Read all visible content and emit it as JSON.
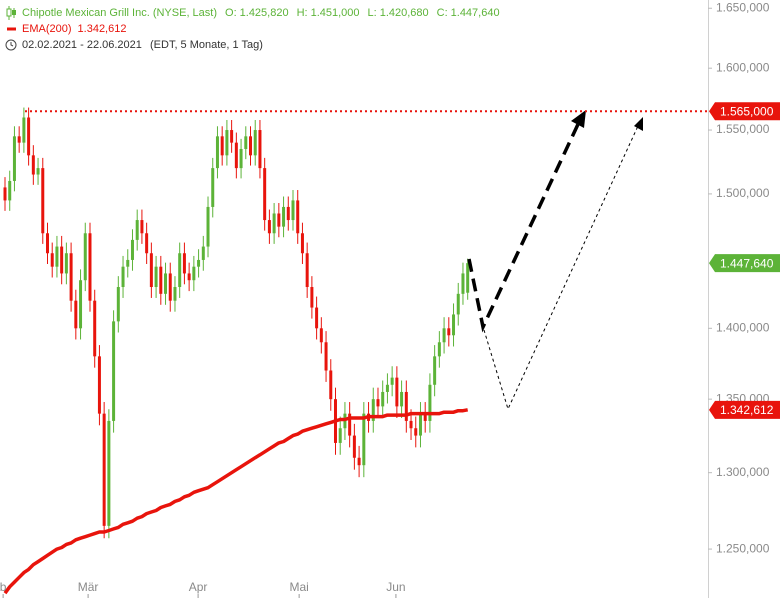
{
  "chart_data": {
    "type": "candlestick",
    "log_scale": true,
    "grid": false,
    "ylim": [
      1219,
      1657
    ],
    "yticks": [
      {
        "value": 1650,
        "label": "1.650,000"
      },
      {
        "value": 1600,
        "label": "1.600,000"
      },
      {
        "value": 1550,
        "label": "1.550,000"
      },
      {
        "value": 1500,
        "label": "1.500,000"
      },
      {
        "value": 1400,
        "label": "1.400,000"
      },
      {
        "value": 1350,
        "label": "1.350,000"
      },
      {
        "value": 1300,
        "label": "1.300,000"
      },
      {
        "value": 1250,
        "label": "1.250,000"
      }
    ],
    "xlim": [
      -1.06,
      148.9
    ],
    "xticks": [
      {
        "value": -0.4,
        "label": "b"
      },
      {
        "value": 17.6,
        "label": "Mär"
      },
      {
        "value": 40.9,
        "label": "Apr"
      },
      {
        "value": 62.3,
        "label": "Mai"
      },
      {
        "value": 82.8,
        "label": "Jun"
      }
    ],
    "categories": [
      null,
      null,
      null,
      null,
      null,
      null,
      null,
      null,
      null,
      null,
      null,
      null,
      null,
      null,
      null,
      null,
      null,
      null,
      null,
      null,
      null,
      null,
      null,
      null,
      null,
      null,
      null,
      null,
      null,
      null,
      null,
      null,
      null,
      null,
      null,
      null,
      null,
      null,
      null,
      null,
      null,
      null,
      null,
      null,
      null,
      null,
      null,
      null,
      null,
      null,
      null,
      null,
      null,
      null,
      null,
      null,
      null,
      null,
      null,
      null,
      null,
      null,
      null,
      null,
      null,
      null,
      null,
      null,
      null,
      null,
      null,
      null,
      null,
      null,
      null,
      null,
      null,
      null,
      null,
      null,
      null,
      null,
      null,
      null,
      null,
      null,
      null,
      null,
      null,
      null,
      null,
      null,
      null,
      null,
      null,
      null,
      null,
      null,
      null
    ],
    "quote": [
      {
        "key": "O:",
        "value": 1425.82,
        "label": "1.425,820"
      },
      {
        "key": "H:",
        "value": 1451,
        "label": "1.451,000"
      },
      {
        "key": "L:",
        "value": 1420.68,
        "label": "1.420,680"
      },
      {
        "key": "C:",
        "value": 1447.64,
        "label": "1.447,640"
      }
    ],
    "period": "02.02.2021 - 22.06.2021",
    "period_note": "(EDT, 5 Monate, 1 Tag)",
    "hlines": [
      {
        "value": 1565,
        "label": "1.565,000",
        "color": "#e8140c"
      }
    ],
    "series": [
      {
        "name": "Chipotle Mexican Grill Inc. (NYSE, Last)",
        "up_color": "#5cb338",
        "down_color": "#e8140c",
        "name_color": "#5cb338",
        "open": [
          1505,
          1495,
          1510,
          1545,
          1540,
          1560,
          1530,
          1515,
          1520,
          1470,
          1455,
          1445,
          1460,
          1440,
          1455,
          1420,
          1400,
          1435,
          1470,
          1420,
          1380,
          1340,
          1265,
          1335,
          1405,
          1430,
          1445,
          1450,
          1465,
          1480,
          1470,
          1455,
          1430,
          1445,
          1425,
          1440,
          1420,
          1430,
          1455,
          1440,
          1435,
          1445,
          1450,
          1460,
          1490,
          1520,
          1545,
          1530,
          1550,
          1540,
          1520,
          1535,
          1545,
          1530,
          1550,
          1520,
          1480,
          1470,
          1485,
          1475,
          1490,
          1480,
          1495,
          1470,
          1455,
          1430,
          1415,
          1400,
          1390,
          1370,
          1350,
          1320,
          1330,
          1340,
          1325,
          1310,
          1305,
          1340,
          1335,
          1350,
          1345,
          1355,
          1360,
          1365,
          1345,
          1355,
          1335,
          1330,
          1325,
          1340,
          1335,
          1360,
          1380,
          1390,
          1400,
          1395,
          1410,
          1425,
          1425.82
        ],
        "high": [
          1513,
          1518,
          1553,
          1553,
          1568,
          1568,
          1538,
          1528,
          1528,
          1478,
          1463,
          1468,
          1468,
          1463,
          1463,
          1428,
          1443,
          1478,
          1478,
          1428,
          1388,
          1348,
          1343,
          1413,
          1438,
          1453,
          1458,
          1473,
          1488,
          1488,
          1478,
          1463,
          1453,
          1453,
          1448,
          1448,
          1438,
          1463,
          1463,
          1448,
          1453,
          1458,
          1468,
          1498,
          1528,
          1553,
          1553,
          1558,
          1558,
          1548,
          1543,
          1553,
          1553,
          1558,
          1558,
          1528,
          1488,
          1493,
          1493,
          1498,
          1498,
          1503,
          1503,
          1478,
          1463,
          1438,
          1423,
          1408,
          1398,
          1378,
          1358,
          1338,
          1348,
          1348,
          1333,
          1318,
          1348,
          1348,
          1358,
          1358,
          1363,
          1368,
          1373,
          1373,
          1363,
          1363,
          1343,
          1338,
          1348,
          1348,
          1368,
          1388,
          1398,
          1408,
          1408,
          1418,
          1433,
          1448,
          1451
        ],
        "low": [
          1487,
          1487,
          1502,
          1532,
          1532,
          1522,
          1507,
          1507,
          1462,
          1447,
          1437,
          1437,
          1432,
          1432,
          1412,
          1392,
          1392,
          1427,
          1412,
          1372,
          1332,
          1257,
          1257,
          1327,
          1397,
          1422,
          1437,
          1442,
          1457,
          1462,
          1447,
          1422,
          1422,
          1417,
          1417,
          1412,
          1412,
          1422,
          1432,
          1427,
          1427,
          1437,
          1442,
          1452,
          1482,
          1512,
          1522,
          1522,
          1532,
          1512,
          1512,
          1527,
          1522,
          1522,
          1512,
          1472,
          1462,
          1462,
          1467,
          1467,
          1472,
          1472,
          1462,
          1447,
          1422,
          1407,
          1392,
          1382,
          1362,
          1342,
          1312,
          1312,
          1322,
          1317,
          1302,
          1297,
          1297,
          1327,
          1327,
          1337,
          1337,
          1347,
          1352,
          1337,
          1337,
          1327,
          1322,
          1317,
          1317,
          1327,
          1327,
          1352,
          1372,
          1382,
          1387,
          1387,
          1402,
          1417,
          1420.68
        ],
        "close": [
          1495,
          1510,
          1545,
          1540,
          1560,
          1530,
          1515,
          1520,
          1470,
          1455,
          1445,
          1460,
          1440,
          1455,
          1420,
          1400,
          1435,
          1470,
          1420,
          1380,
          1340,
          1265,
          1335,
          1405,
          1430,
          1445,
          1450,
          1465,
          1480,
          1470,
          1455,
          1430,
          1445,
          1425,
          1440,
          1420,
          1430,
          1455,
          1440,
          1435,
          1445,
          1450,
          1460,
          1490,
          1520,
          1545,
          1530,
          1550,
          1540,
          1520,
          1535,
          1545,
          1530,
          1550,
          1520,
          1480,
          1470,
          1485,
          1475,
          1490,
          1480,
          1495,
          1470,
          1455,
          1430,
          1415,
          1400,
          1390,
          1370,
          1350,
          1320,
          1330,
          1340,
          1325,
          1310,
          1305,
          1340,
          1335,
          1350,
          1345,
          1355,
          1360,
          1365,
          1345,
          1355,
          1335,
          1330,
          1325,
          1340,
          1335,
          1360,
          1380,
          1390,
          1400,
          1395,
          1410,
          1425,
          1440,
          1447.64
        ],
        "last_value": {
          "value": 1447.64,
          "label": "1.447,640"
        }
      },
      {
        "name": "EMA(200)",
        "color": "#e8140c",
        "values": [
          1222,
          1226,
          1229,
          1232,
          1235,
          1237,
          1240,
          1242,
          1244,
          1246,
          1248,
          1250,
          1251,
          1253,
          1254,
          1256,
          1257,
          1258,
          1259,
          1260,
          1261,
          1261,
          1262,
          1263,
          1264,
          1266,
          1267,
          1268,
          1270,
          1271,
          1273,
          1274,
          1275,
          1277,
          1278,
          1279,
          1281,
          1282,
          1284,
          1285,
          1287,
          1288,
          1289,
          1290,
          1292,
          1294,
          1296,
          1298,
          1300,
          1302,
          1304,
          1306,
          1308,
          1310,
          1312,
          1314,
          1316,
          1318,
          1320,
          1321,
          1323,
          1325,
          1326,
          1328,
          1329,
          1330,
          1331,
          1332,
          1333,
          1334,
          1335,
          1336,
          1336,
          1337,
          1337,
          1337,
          1337,
          1338,
          1338,
          1338,
          1338,
          1339,
          1339,
          1339,
          1339,
          1339,
          1340,
          1340,
          1340,
          1340,
          1340,
          1340,
          1340,
          1341,
          1341,
          1341,
          1342,
          1342,
          1342.612
        ],
        "last_value": {
          "value": 1342.612,
          "label": "1.342,612"
        }
      }
    ]
  }
}
